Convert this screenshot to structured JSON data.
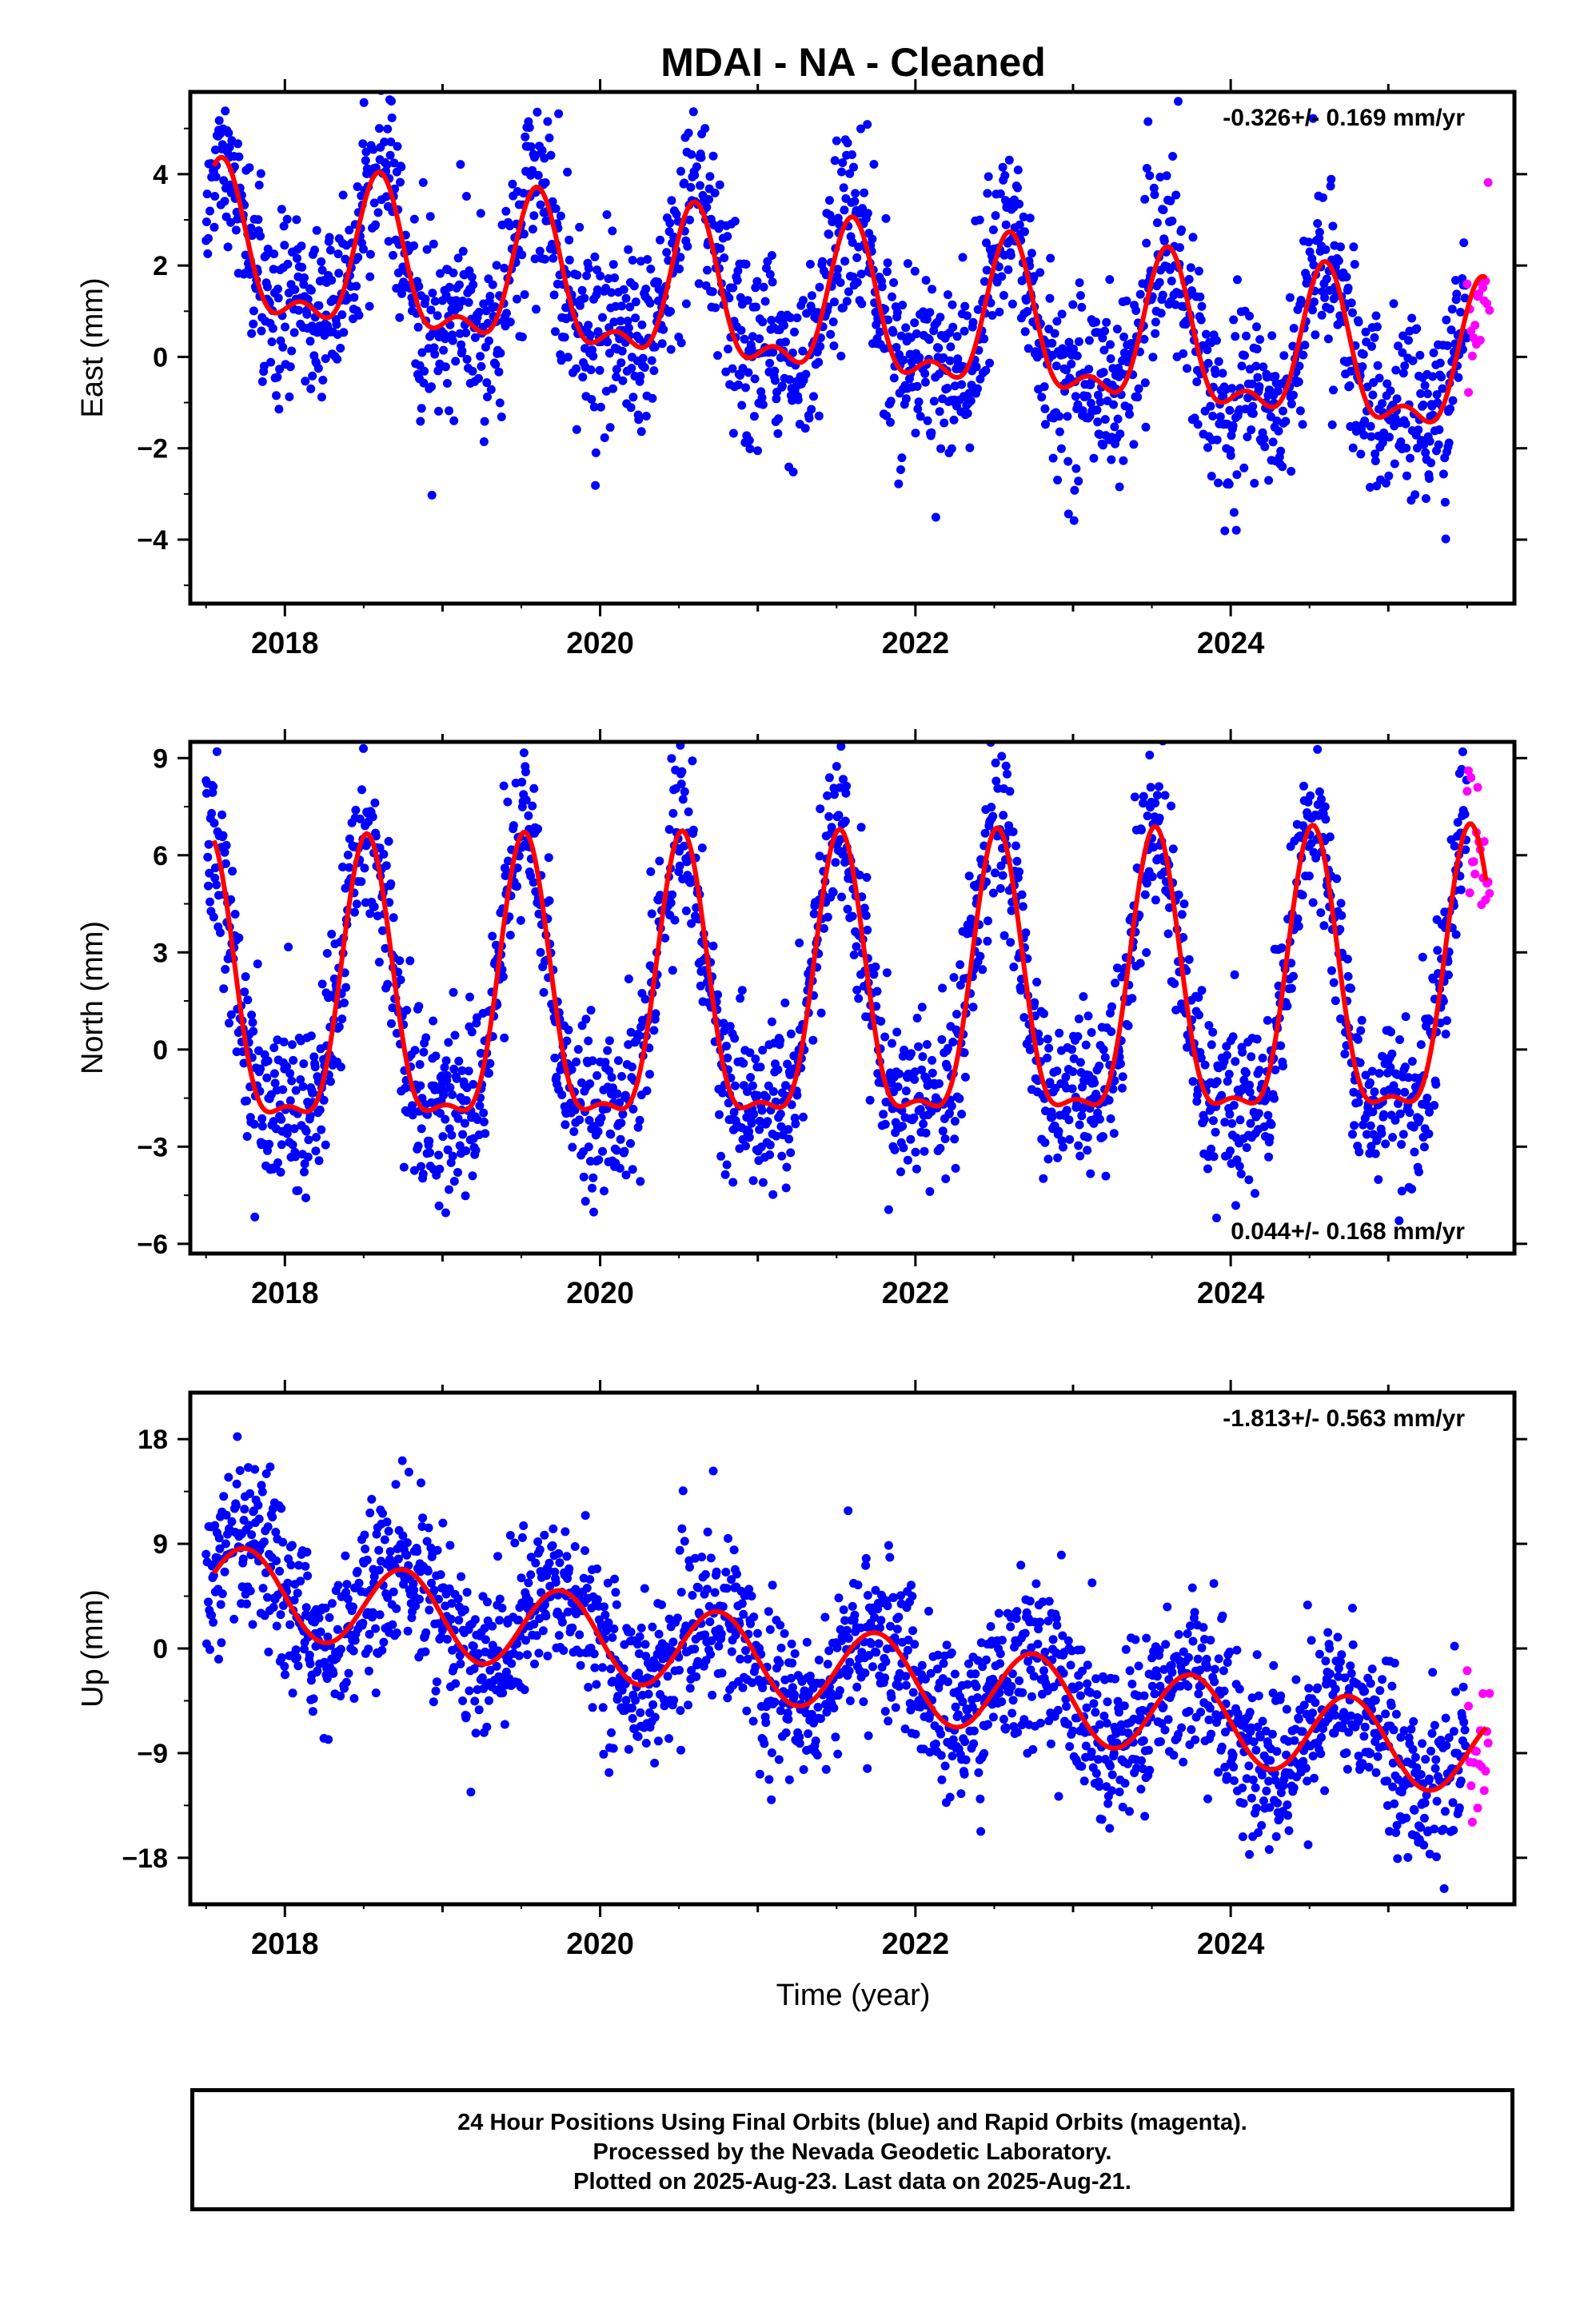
{
  "title": "MDAI  - NA - Cleaned",
  "x_label": "Time (year)",
  "footer": {
    "line1": "24 Hour Positions Using Final Orbits (blue) and Rapid Orbits (magenta).",
    "line2": "Processed by the Nevada Geodetic Laboratory.",
    "line3": "Plotted on 2025-Aug-23. Last data on 2025-Aug-21."
  },
  "colors": {
    "final": "#0000ff",
    "rapid": "#ff00ff",
    "model": "#ff0000",
    "frame": "#000000"
  },
  "chart_data": [
    {
      "type": "scatter",
      "component": "east",
      "ylabel": "East (mm)",
      "rate_text": "-0.326+/- 0.169 mm/yr",
      "rate_position": "top-right",
      "xlim": [
        2017.4,
        2025.8
      ],
      "ylim": [
        -5.4,
        5.8
      ],
      "x_ticks": [
        2018,
        2020,
        2022,
        2024
      ],
      "x_tick_labels": [
        "2018",
        "2020",
        "2022",
        "2024"
      ],
      "y_ticks": [
        -4,
        -2,
        0,
        2,
        4
      ],
      "y_tick_labels": [
        "−4",
        "−2",
        "0",
        "2",
        "4"
      ],
      "grid": false,
      "series": [
        {
          "kind": "final",
          "x_start": 2017.5,
          "x_end": 2025.5
        },
        {
          "kind": "rapid",
          "x_start": 2025.5,
          "x_end": 2025.65
        },
        {
          "kind": "model"
        }
      ],
      "model": {
        "offset": 0.9,
        "rate": -0.326,
        "ref_year": 2021.5,
        "annual_amp": 1.5,
        "annual_peak": 2018.6,
        "semi_amp": 0.7,
        "semi_peak": 2018.6
      },
      "noise_sd": 1.0,
      "model_range": [
        2017.55,
        2025.62
      ]
    },
    {
      "type": "scatter",
      "component": "north",
      "ylabel": "North (mm)",
      "rate_text": "0.044+/- 0.168 mm/yr",
      "rate_position": "bottom-right",
      "xlim": [
        2017.4,
        2025.8
      ],
      "ylim": [
        -6.3,
        9.5
      ],
      "x_ticks": [
        2018,
        2020,
        2022,
        2024
      ],
      "x_tick_labels": [
        "2018",
        "2020",
        "2022",
        "2024"
      ],
      "y_ticks": [
        -6,
        -3,
        0,
        3,
        6,
        9
      ],
      "y_tick_labels": [
        "−6",
        "−3",
        "0",
        "3",
        "6",
        "9"
      ],
      "grid": false,
      "series": [
        {
          "kind": "final",
          "x_start": 2017.5,
          "x_end": 2025.5
        },
        {
          "kind": "rapid",
          "x_start": 2025.5,
          "x_end": 2025.65
        },
        {
          "kind": "model"
        }
      ],
      "model": {
        "offset": 1.2,
        "rate": 0.044,
        "ref_year": 2021.5,
        "annual_amp": 4.2,
        "annual_peak": 2018.52,
        "semi_amp": 1.4,
        "semi_peak": 2018.52
      },
      "noise_sd": 1.3,
      "model_range": [
        2017.55,
        2025.62
      ]
    },
    {
      "type": "scatter",
      "component": "up",
      "ylabel": "Up (mm)",
      "rate_text": "-1.813+/- 0.563 mm/yr",
      "rate_position": "top-right",
      "xlim": [
        2017.4,
        2025.8
      ],
      "ylim": [
        -22,
        22
      ],
      "x_ticks": [
        2018,
        2020,
        2022,
        2024
      ],
      "x_tick_labels": [
        "2018",
        "2020",
        "2022",
        "2024"
      ],
      "y_ticks": [
        -18,
        -9,
        0,
        9,
        18
      ],
      "y_tick_labels": [
        "−18",
        "−9",
        "0",
        "9",
        "18"
      ],
      "grid": false,
      "series": [
        {
          "kind": "final",
          "x_start": 2017.5,
          "x_end": 2025.5
        },
        {
          "kind": "rapid",
          "x_start": 2025.5,
          "x_end": 2025.65
        },
        {
          "kind": "model"
        }
      ],
      "model": {
        "offset": -1.8,
        "rate": -1.813,
        "ref_year": 2021.5,
        "annual_amp": 3.6,
        "annual_peak": 2018.75,
        "semi_amp": 0.0,
        "semi_peak": 2018.75
      },
      "noise_sd": 3.4,
      "model_range": [
        2017.55,
        2025.62
      ]
    }
  ]
}
